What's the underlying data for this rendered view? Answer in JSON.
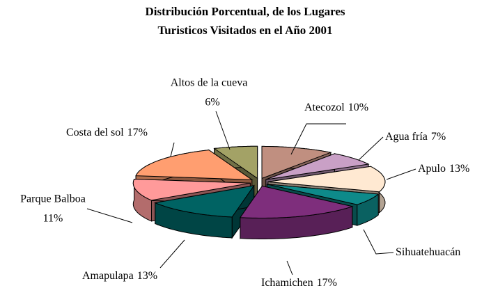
{
  "chart_data": {
    "type": "pie3d",
    "title": [
      "Distribución Porcentual, de los Lugares",
      "Turisticos Visitados en el Año 2001"
    ],
    "categories": [
      "Atecozol",
      "Agua fría",
      "Apulo",
      "Sihuatehuacán",
      "Ichamichen",
      "Amapulapa",
      "Parque Balboa",
      "Costa del sol",
      "Altos de la cueva"
    ],
    "values": [
      10,
      7,
      13,
      6,
      17,
      13,
      11,
      17,
      6
    ],
    "value_labels": [
      "10%",
      "7%",
      "13%",
      null,
      "17%",
      "13%",
      "11%",
      "17%",
      "6%"
    ],
    "colors": [
      "#c08f80",
      "#c9a0c6",
      "#ffe9d2",
      "#0e8a8a",
      "#7e2e7c",
      "#006363",
      "#ff9a9a",
      "#ff9e70",
      "#a3a266"
    ]
  }
}
